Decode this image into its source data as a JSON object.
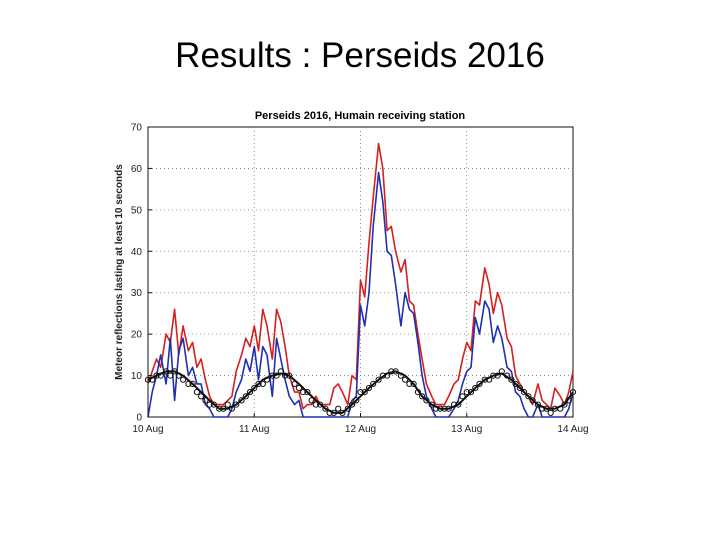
{
  "slide": {
    "title": "Results : Perseids 2016"
  },
  "colors": {
    "red": "#d42020",
    "blue": "#2030b0",
    "black": "#111111",
    "grid": "#777777"
  },
  "chart_data": {
    "type": "line",
    "title": "Perseids 2016, Humain receiving station",
    "ylabel": "Meteor reflections lasting at least 10 seconds",
    "xlabel": "",
    "ylim": [
      0,
      70
    ],
    "xlim": [
      10,
      14
    ],
    "yticks": [
      0,
      10,
      20,
      30,
      40,
      50,
      60,
      70
    ],
    "xticks": [
      {
        "value": 10,
        "label": "10 Aug"
      },
      {
        "value": 11,
        "label": "11 Aug"
      },
      {
        "value": 12,
        "label": "12 Aug"
      },
      {
        "value": 13,
        "label": "13 Aug"
      },
      {
        "value": 14,
        "label": "14 Aug"
      }
    ],
    "grid": true,
    "series": [
      {
        "color": "red",
        "style": "line",
        "x": [
          10.0,
          10.04,
          10.08,
          10.12,
          10.17,
          10.21,
          10.25,
          10.29,
          10.33,
          10.38,
          10.42,
          10.46,
          10.5,
          10.54,
          10.58,
          10.62,
          10.67,
          10.71,
          10.75,
          10.79,
          10.83,
          10.88,
          10.92,
          10.96,
          11.0,
          11.04,
          11.08,
          11.12,
          11.17,
          11.21,
          11.25,
          11.29,
          11.33,
          11.38,
          11.42,
          11.46,
          11.5,
          11.54,
          11.58,
          11.62,
          11.67,
          11.71,
          11.75,
          11.79,
          11.83,
          11.88,
          11.92,
          11.96,
          12.0,
          12.04,
          12.08,
          12.12,
          12.17,
          12.21,
          12.25,
          12.29,
          12.33,
          12.38,
          12.42,
          12.46,
          12.5,
          12.54,
          12.58,
          12.62,
          12.67,
          12.71,
          12.75,
          12.79,
          12.83,
          12.88,
          12.92,
          12.96,
          13.0,
          13.04,
          13.08,
          13.12,
          13.17,
          13.21,
          13.25,
          13.29,
          13.33,
          13.38,
          13.42,
          13.46,
          13.5,
          13.54,
          13.58,
          13.62,
          13.67,
          13.71,
          13.75,
          13.79,
          13.83,
          13.88,
          13.92,
          13.96,
          14.0
        ],
        "y": [
          8,
          11,
          14,
          12,
          20,
          18,
          26,
          15,
          22,
          16,
          18,
          12,
          14,
          9,
          5,
          3,
          3,
          3,
          4,
          5,
          11,
          15,
          19,
          17,
          22,
          16,
          26,
          22,
          14,
          26,
          23,
          17,
          10,
          6,
          6,
          2,
          3,
          3,
          5,
          3,
          3,
          3,
          7,
          8,
          6,
          3,
          10,
          9,
          33,
          29,
          42,
          53,
          66,
          60,
          45,
          46,
          40,
          35,
          38,
          28,
          27,
          20,
          14,
          8,
          5,
          3,
          3,
          3,
          5,
          8,
          9,
          14,
          18,
          16,
          28,
          27,
          36,
          32,
          25,
          30,
          27,
          19,
          17,
          10,
          8,
          6,
          5,
          3,
          8,
          4,
          3,
          2,
          7,
          5,
          3,
          6,
          11
        ]
      },
      {
        "color": "blue",
        "style": "line",
        "x": [
          10.0,
          10.04,
          10.08,
          10.12,
          10.17,
          10.21,
          10.25,
          10.29,
          10.33,
          10.38,
          10.42,
          10.46,
          10.5,
          10.54,
          10.58,
          10.62,
          10.67,
          10.71,
          10.75,
          10.79,
          10.83,
          10.88,
          10.92,
          10.96,
          11.0,
          11.04,
          11.08,
          11.12,
          11.17,
          11.21,
          11.25,
          11.29,
          11.33,
          11.38,
          11.42,
          11.46,
          11.5,
          11.54,
          11.58,
          11.62,
          11.67,
          11.71,
          11.75,
          11.79,
          11.83,
          11.88,
          11.92,
          11.96,
          12.0,
          12.04,
          12.08,
          12.12,
          12.17,
          12.21,
          12.25,
          12.29,
          12.33,
          12.38,
          12.42,
          12.46,
          12.5,
          12.54,
          12.58,
          12.62,
          12.67,
          12.71,
          12.75,
          12.79,
          12.83,
          12.88,
          12.92,
          12.96,
          13.0,
          13.04,
          13.08,
          13.12,
          13.17,
          13.21,
          13.25,
          13.29,
          13.33,
          13.38,
          13.42,
          13.46,
          13.5,
          13.54,
          13.58,
          13.62,
          13.67,
          13.71,
          13.75,
          13.79,
          13.83,
          13.88,
          13.92,
          13.96,
          14.0
        ],
        "y": [
          0,
          6,
          10,
          15,
          8,
          19,
          4,
          16,
          19,
          10,
          12,
          8,
          8,
          3,
          2,
          0,
          0,
          0,
          0,
          2,
          6,
          9,
          14,
          11,
          17,
          9,
          17,
          15,
          5,
          19,
          14,
          9,
          5,
          3,
          4,
          0,
          0,
          0,
          0,
          0,
          0,
          0,
          0,
          0,
          0,
          0,
          4,
          5,
          27,
          22,
          30,
          46,
          59,
          52,
          40,
          39,
          32,
          22,
          30,
          26,
          25,
          18,
          10,
          5,
          2,
          0,
          0,
          0,
          0,
          2,
          4,
          8,
          11,
          12,
          24,
          20,
          28,
          26,
          18,
          22,
          19,
          12,
          11,
          6,
          5,
          2,
          0,
          0,
          3,
          0,
          0,
          0,
          0,
          0,
          0,
          2,
          6
        ]
      },
      {
        "color": "black",
        "style": "smooth",
        "x": [
          10.0,
          10.08,
          10.17,
          10.25,
          10.33,
          10.42,
          10.5,
          10.58,
          10.67,
          10.75,
          10.83,
          10.92,
          11.0,
          11.08,
          11.17,
          11.25,
          11.33,
          11.42,
          11.5,
          11.58,
          11.67,
          11.75,
          11.83,
          11.92,
          12.0,
          12.08,
          12.17,
          12.25,
          12.33,
          12.42,
          12.5,
          12.58,
          12.67,
          12.75,
          12.83,
          12.92,
          13.0,
          13.08,
          13.17,
          13.25,
          13.33,
          13.42,
          13.5,
          13.58,
          13.67,
          13.75,
          13.83,
          13.92,
          14.0
        ],
        "y": [
          9,
          10,
          11,
          11,
          10,
          8,
          6,
          4,
          2,
          2,
          3,
          5,
          7,
          9,
          10,
          10.5,
          10,
          8,
          6,
          4,
          2,
          1,
          1,
          3,
          5,
          7,
          9,
          10.5,
          11,
          10,
          8,
          5,
          3,
          2,
          2,
          3,
          5,
          7,
          9,
          10,
          10.5,
          9,
          7,
          5,
          3,
          2,
          2,
          3,
          6
        ]
      },
      {
        "color": "black",
        "style": "markers",
        "x": [
          10.0,
          10.04,
          10.08,
          10.12,
          10.17,
          10.21,
          10.25,
          10.29,
          10.33,
          10.38,
          10.42,
          10.46,
          10.5,
          10.54,
          10.58,
          10.62,
          10.67,
          10.71,
          10.75,
          10.79,
          10.83,
          10.88,
          10.92,
          10.96,
          11.0,
          11.04,
          11.08,
          11.12,
          11.17,
          11.21,
          11.25,
          11.29,
          11.33,
          11.38,
          11.42,
          11.46,
          11.5,
          11.54,
          11.58,
          11.62,
          11.67,
          11.71,
          11.75,
          11.79,
          11.83,
          11.88,
          11.92,
          11.96,
          12.0,
          12.04,
          12.08,
          12.12,
          12.17,
          12.21,
          12.25,
          12.29,
          12.33,
          12.38,
          12.42,
          12.46,
          12.5,
          12.54,
          12.58,
          12.62,
          12.67,
          12.71,
          12.75,
          12.79,
          12.83,
          12.88,
          12.92,
          12.96,
          13.0,
          13.04,
          13.08,
          13.12,
          13.17,
          13.21,
          13.25,
          13.29,
          13.33,
          13.38,
          13.42,
          13.46,
          13.5,
          13.54,
          13.58,
          13.62,
          13.67,
          13.71,
          13.75,
          13.79,
          13.83,
          13.88,
          13.92,
          13.96,
          14.0
        ],
        "y": [
          9,
          9,
          10,
          10,
          11,
          10,
          11,
          10,
          9,
          8,
          8,
          6,
          5,
          4,
          3,
          3,
          2,
          2,
          3,
          2,
          3,
          4,
          5,
          6,
          7,
          8,
          8,
          9,
          10,
          10,
          11,
          10,
          10,
          8,
          7,
          6,
          6,
          4,
          3,
          3,
          2,
          1,
          1,
          2,
          1,
          2,
          3,
          4,
          6,
          6,
          7,
          8,
          9,
          10,
          10,
          11,
          11,
          10,
          9,
          8,
          8,
          6,
          5,
          4,
          3,
          2,
          2,
          2,
          2,
          3,
          3,
          5,
          6,
          6,
          7,
          8,
          9,
          9,
          10,
          10,
          11,
          10,
          9,
          8,
          7,
          6,
          5,
          4,
          3,
          2,
          2,
          1,
          2,
          2,
          3,
          4,
          6
        ]
      }
    ]
  }
}
